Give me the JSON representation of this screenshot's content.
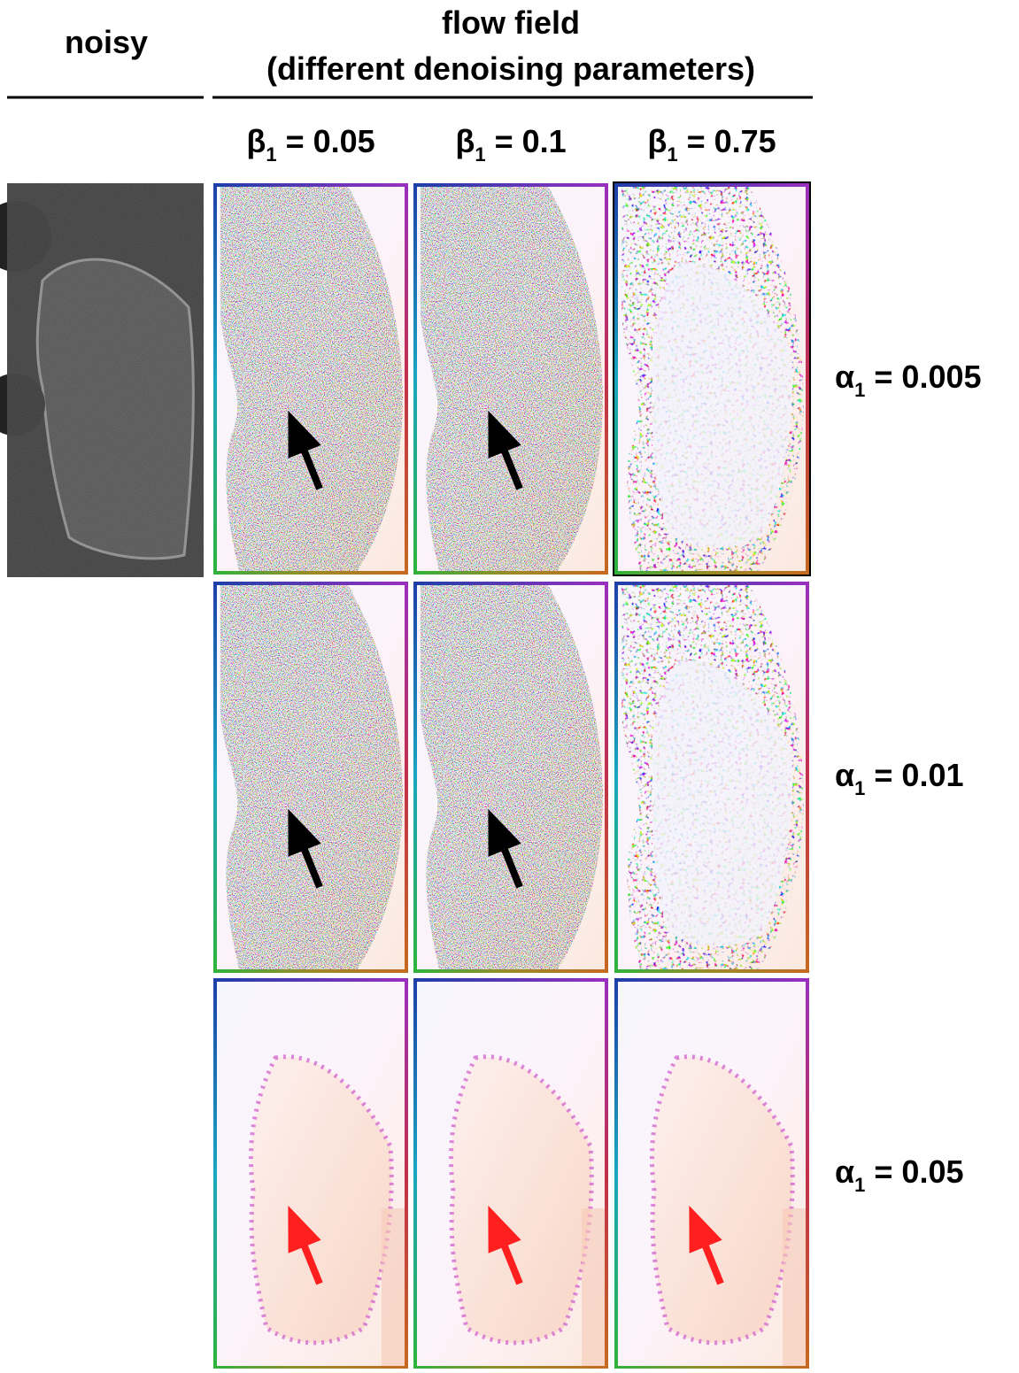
{
  "header": {
    "left": "noisy",
    "right_line1": "flow field",
    "right_line2": "(different denoising parameters)"
  },
  "columns": [
    {
      "symbol": "β",
      "subscript": "1",
      "value": "= 0.05"
    },
    {
      "symbol": "β",
      "subscript": "1",
      "value": "= 0.1"
    },
    {
      "symbol": "β",
      "subscript": "1",
      "value": "= 0.75"
    }
  ],
  "rows": [
    {
      "symbol": "α",
      "subscript": "1",
      "value": "= 0.005"
    },
    {
      "symbol": "α",
      "subscript": "1",
      "value": "= 0.01"
    },
    {
      "symbol": "α",
      "subscript": "1",
      "value": "= 0.05"
    }
  ]
}
